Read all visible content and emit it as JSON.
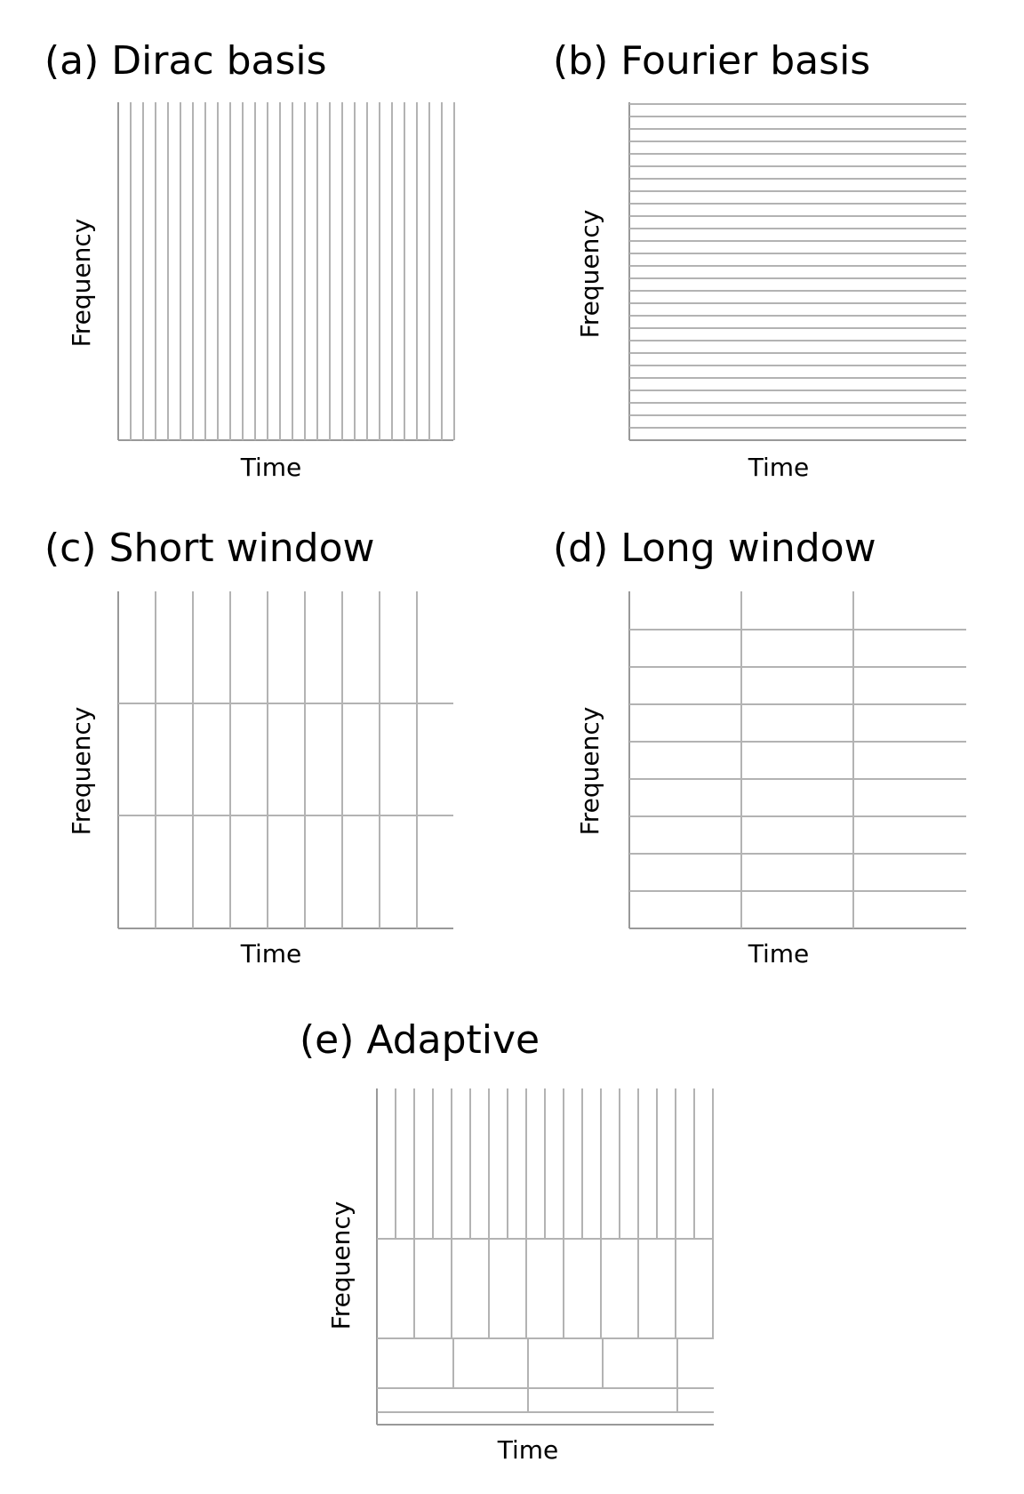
{
  "colors": {
    "grid": "#b3b3b3",
    "axis": "#999999",
    "text": "#000000",
    "background": "#ffffff"
  },
  "panels": [
    {
      "id": "a",
      "title": "(a) Dirac basis",
      "xlabel": "Time",
      "ylabel": "Frequency",
      "tiling": "vertical lines, one per time sample"
    },
    {
      "id": "b",
      "title": "(b) Fourier basis",
      "xlabel": "Time",
      "ylabel": "Frequency",
      "tiling": "horizontal lines, one per frequency"
    },
    {
      "id": "c",
      "title": "(c) Short window",
      "xlabel": "Time",
      "ylabel": "Frequency",
      "tiling": "narrow tall tiles"
    },
    {
      "id": "d",
      "title": "(d) Long window",
      "xlabel": "Time",
      "ylabel": "Frequency",
      "tiling": "wide short tiles"
    },
    {
      "id": "e",
      "title": "(e) Adaptive",
      "xlabel": "Time",
      "ylabel": "Frequency",
      "tiling": "multi-resolution tiles"
    }
  ]
}
